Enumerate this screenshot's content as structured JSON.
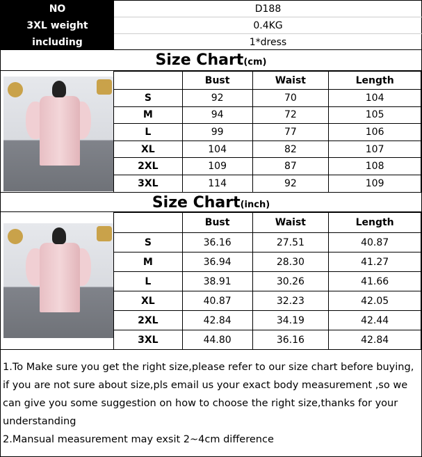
{
  "header": {
    "rows": [
      {
        "label": "NO",
        "value": "D188"
      },
      {
        "label": "3XL weight",
        "value": "0.4KG"
      },
      {
        "label": "including",
        "value": "1*dress"
      }
    ]
  },
  "cm_chart": {
    "title": "Size Chart",
    "unit": "(cm)",
    "columns": [
      "Bust",
      "Waist",
      "Length"
    ],
    "rows": [
      [
        "S",
        "92",
        "70",
        "104"
      ],
      [
        "M",
        "94",
        "72",
        "105"
      ],
      [
        "L",
        "99",
        "77",
        "106"
      ],
      [
        "XL",
        "104",
        "82",
        "107"
      ],
      [
        "2XL",
        "109",
        "87",
        "108"
      ],
      [
        "3XL",
        "114",
        "92",
        "109"
      ]
    ]
  },
  "inch_chart": {
    "title": "Size Chart",
    "unit": "(inch)",
    "columns": [
      "Bust",
      "Waist",
      "Length"
    ],
    "rows": [
      [
        "S",
        "36.16",
        "27.51",
        "40.87"
      ],
      [
        "M",
        "36.94",
        "28.30",
        "41.27"
      ],
      [
        "L",
        "38.91",
        "30.26",
        "41.66"
      ],
      [
        "XL",
        "40.87",
        "32.23",
        "42.05"
      ],
      [
        "2XL",
        "42.84",
        "34.19",
        "42.44"
      ],
      [
        "3XL",
        "44.80",
        "36.16",
        "42.84"
      ]
    ]
  },
  "notes": [
    "1.To Make sure you get the right size,please refer to our size chart before buying, if you are not sure about size,pls email us your exact body measurement ,so we can give you some suggestion on how to choose the right size,thanks for your understanding",
    "2.Mansual measurement may exsit 2~4cm difference"
  ]
}
